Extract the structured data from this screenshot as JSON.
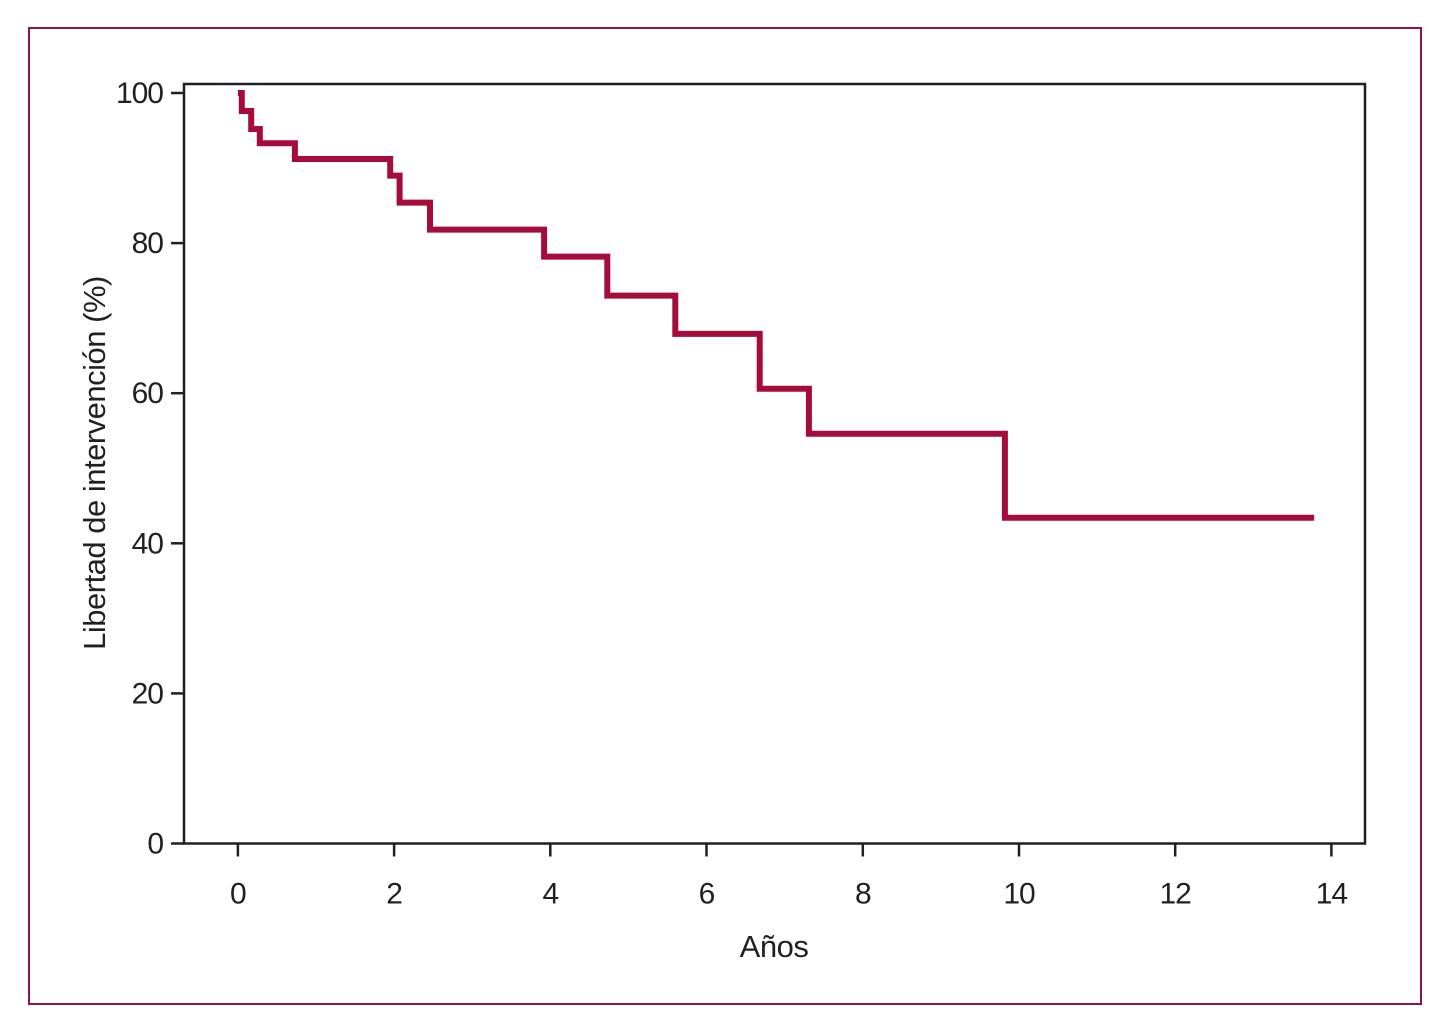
{
  "figure": {
    "border_color": "#8F1648",
    "background_color": "#ffffff"
  },
  "chart_data": {
    "type": "line",
    "subtype": "kaplan-meier-step",
    "title": "",
    "xlabel": "Años",
    "ylabel": "Libertad de intervención (%)",
    "x_ticks": [
      0,
      2,
      4,
      6,
      8,
      10,
      12,
      14
    ],
    "y_ticks": [
      0,
      20,
      40,
      60,
      80,
      100
    ],
    "xlim": [
      -0.69,
      14.43
    ],
    "ylim": [
      0,
      101.2
    ],
    "grid": false,
    "legend": "none",
    "line_color": "#A60C3B",
    "axis_color": "#231F20",
    "series": [
      {
        "name": "Libertad de intervención",
        "steps": [
          {
            "t": 0.0,
            "v": 100
          },
          {
            "t": 0.05,
            "v": 97.6
          },
          {
            "t": 0.17,
            "v": 95.2
          },
          {
            "t": 0.28,
            "v": 93.3
          },
          {
            "t": 0.73,
            "v": 91.2
          },
          {
            "t": 1.95,
            "v": 89.0
          },
          {
            "t": 2.07,
            "v": 85.4
          },
          {
            "t": 2.46,
            "v": 81.8
          },
          {
            "t": 3.92,
            "v": 78.2
          },
          {
            "t": 4.73,
            "v": 73.0
          },
          {
            "t": 5.6,
            "v": 67.9
          },
          {
            "t": 6.68,
            "v": 60.6
          },
          {
            "t": 7.31,
            "v": 54.6
          },
          {
            "t": 9.82,
            "v": 43.4
          }
        ],
        "end_t": 13.78
      }
    ]
  }
}
